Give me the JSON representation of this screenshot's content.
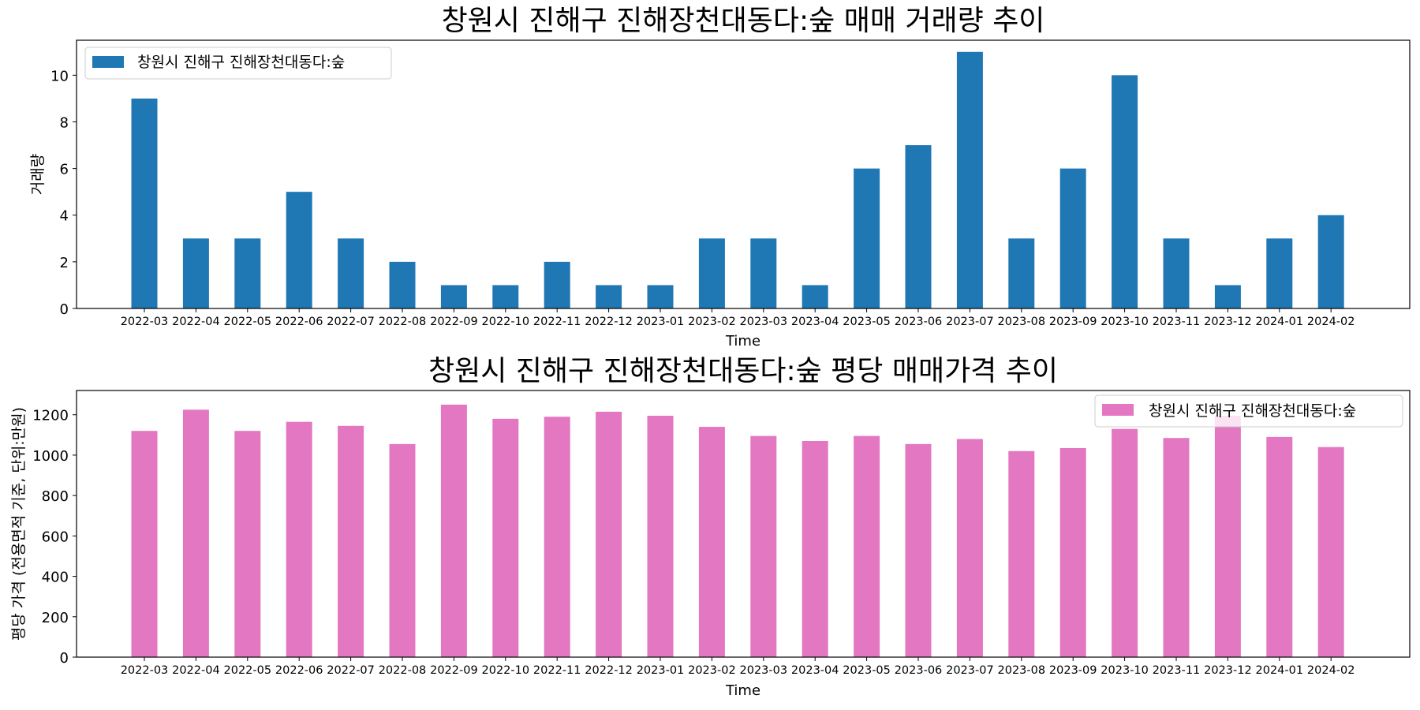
{
  "chart_data": [
    {
      "type": "bar",
      "title": "창원시 진해구 진해장천대동다:숲 매매 거래량 추이",
      "xlabel": "Time",
      "ylabel": "거래량",
      "categories": [
        "2022-03",
        "2022-04",
        "2022-05",
        "2022-06",
        "2022-07",
        "2022-08",
        "2022-09",
        "2022-10",
        "2022-11",
        "2022-12",
        "2023-01",
        "2023-02",
        "2023-03",
        "2023-04",
        "2023-05",
        "2023-06",
        "2023-07",
        "2023-08",
        "2023-09",
        "2023-10",
        "2023-11",
        "2023-12",
        "2024-01",
        "2024-02"
      ],
      "series": [
        {
          "name": "창원시 진해구 진해장천대동다:숲",
          "color": "#1f77b4",
          "values": [
            9,
            3,
            3,
            5,
            3,
            2,
            1,
            1,
            2,
            1,
            1,
            3,
            3,
            1,
            6,
            7,
            11,
            3,
            6,
            10,
            3,
            1,
            3,
            4
          ]
        }
      ],
      "ylim": [
        0,
        11.5
      ],
      "yticks": [
        0,
        2,
        4,
        6,
        8,
        10
      ],
      "legend": "top-left",
      "grid": false
    },
    {
      "type": "bar",
      "title": "창원시 진해구 진해장천대동다:숲 평당 매매가격 추이",
      "xlabel": "Time",
      "ylabel": "평당 가격 (전용면적 기준, 단위:만원)",
      "categories": [
        "2022-03",
        "2022-04",
        "2022-05",
        "2022-06",
        "2022-07",
        "2022-08",
        "2022-09",
        "2022-10",
        "2022-11",
        "2022-12",
        "2023-01",
        "2023-02",
        "2023-03",
        "2023-04",
        "2023-05",
        "2023-06",
        "2023-07",
        "2023-08",
        "2023-09",
        "2023-10",
        "2023-11",
        "2023-12",
        "2024-01",
        "2024-02"
      ],
      "series": [
        {
          "name": "창원시 진해구 진해장천대동다:숲",
          "color": "#e377c2",
          "values": [
            1120,
            1225,
            1120,
            1165,
            1145,
            1055,
            1250,
            1180,
            1190,
            1215,
            1195,
            1140,
            1095,
            1070,
            1095,
            1055,
            1080,
            1020,
            1035,
            1130,
            1085,
            1195,
            1090,
            1040
          ]
        }
      ],
      "ylim": [
        0,
        1320
      ],
      "yticks": [
        0,
        200,
        400,
        600,
        800,
        1000,
        1200
      ],
      "legend": "top-right",
      "grid": false
    }
  ]
}
